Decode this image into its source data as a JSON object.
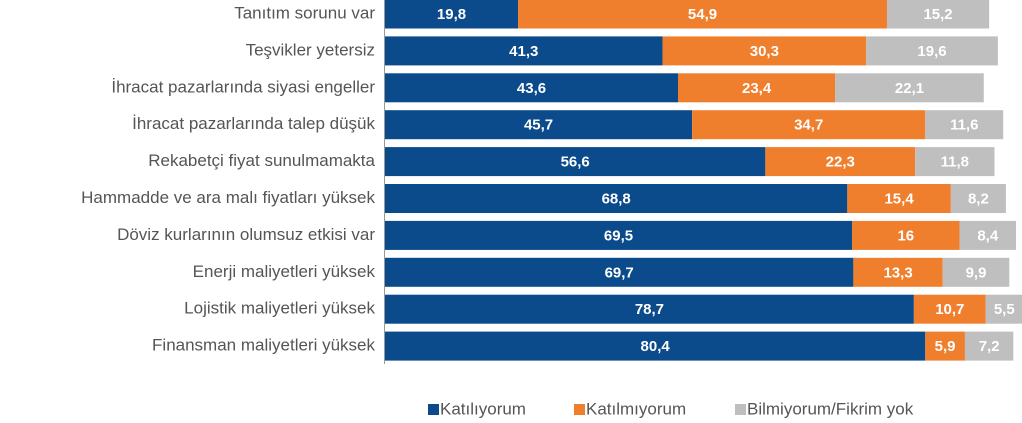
{
  "chart_data": {
    "type": "stacked-bar-horizontal",
    "categories": [
      "Tanıtım sorunu var",
      "Teşvikler yetersiz",
      "İhracat pazarlarında siyasi engeller",
      "İhracat pazarlarında talep düşük",
      "Rekabetçi fiyat sunulmamakta",
      "Hammadde ve ara malı fiyatları yüksek",
      "Döviz kurlarının olumsuz etkisi var",
      "Enerji maliyetleri yüksek",
      "Lojistik maliyetleri yüksek",
      "Finansman maliyetleri yüksek"
    ],
    "series": [
      {
        "name": "Katılıyorum",
        "color": "#0b4a8b",
        "values": [
          19.8,
          41.3,
          43.6,
          45.7,
          56.6,
          68.8,
          69.5,
          69.7,
          78.7,
          80.4
        ],
        "value_labels": [
          "19,8",
          "41,3",
          "43,6",
          "45,7",
          "56,6",
          "68,8",
          "69,5",
          "69,7",
          "78,7",
          "80,4"
        ]
      },
      {
        "name": "Katılmıyorum",
        "color": "#f07f2d",
        "values": [
          54.9,
          30.3,
          23.4,
          34.7,
          22.3,
          15.4,
          16,
          13.3,
          10.7,
          5.9
        ],
        "value_labels": [
          "54,9",
          "30,3",
          "23,4",
          "34,7",
          "22,3",
          "15,4",
          "16",
          "13,3",
          "10,7",
          "5,9"
        ]
      },
      {
        "name": "Bilmiyorum/Fikrim yok",
        "color": "#bfbfbf",
        "values": [
          15.2,
          19.6,
          22.1,
          11.6,
          11.8,
          8.2,
          8.4,
          9.9,
          5.5,
          7.2
        ],
        "value_labels": [
          "15,2",
          "19,6",
          "22,1",
          "11,6",
          "11,8",
          "8,2",
          "8,4",
          "9,9",
          "5,5",
          "7,2"
        ]
      }
    ],
    "legend": "bottom"
  }
}
